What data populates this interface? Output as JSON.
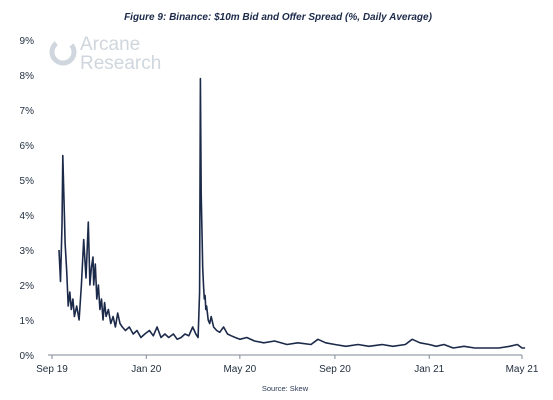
{
  "chart_data": {
    "type": "line",
    "title": "Figure 9: Binance: $10m Bid and Offer Spread (%, Daily Average)",
    "source": "Source: Skew",
    "watermark": [
      "Arcane",
      "Research"
    ],
    "y_ticks": [
      "0%",
      "1%",
      "2%",
      "3%",
      "4%",
      "5%",
      "6%",
      "7%",
      "8%",
      "9%"
    ],
    "x_ticks": [
      "Sep 19",
      "Jan 20",
      "May 20",
      "Sep 20",
      "Jan 21",
      "May 21"
    ],
    "ylim": [
      0,
      9
    ],
    "grid": false,
    "colors": {
      "line": "#1c2a4a",
      "axis": "#7f8a96",
      "watermark": "#cfd6dd"
    },
    "series": [
      {
        "x": [
          "2019-09-10",
          "2019-09-12",
          "2019-09-14",
          "2019-09-15",
          "2019-09-17",
          "2019-09-18",
          "2019-09-20",
          "2019-09-22",
          "2019-09-24",
          "2019-09-26",
          "2019-09-28",
          "2019-09-30",
          "2019-10-03",
          "2019-10-06",
          "2019-10-09",
          "2019-10-12",
          "2019-10-15",
          "2019-10-18",
          "2019-10-20",
          "2019-10-22",
          "2019-10-24",
          "2019-10-25",
          "2019-10-27",
          "2019-10-29",
          "2019-10-31",
          "2019-11-02",
          "2019-11-04",
          "2019-11-06",
          "2019-11-08",
          "2019-11-10",
          "2019-11-13",
          "2019-11-16",
          "2019-11-19",
          "2019-11-22",
          "2019-11-25",
          "2019-11-28",
          "2019-12-01",
          "2019-12-05",
          "2019-12-10",
          "2019-12-15",
          "2019-12-20",
          "2019-12-25",
          "2019-12-30",
          "2020-01-05",
          "2020-01-10",
          "2020-01-15",
          "2020-01-20",
          "2020-01-25",
          "2020-01-30",
          "2020-02-05",
          "2020-02-10",
          "2020-02-15",
          "2020-02-20",
          "2020-02-25",
          "2020-03-01",
          "2020-03-05",
          "2020-03-08",
          "2020-03-10",
          "2020-03-11",
          "2020-03-12",
          "2020-03-13",
          "2020-03-14",
          "2020-03-15",
          "2020-03-16",
          "2020-03-17",
          "2020-03-18",
          "2020-03-19",
          "2020-03-21",
          "2020-03-23",
          "2020-03-25",
          "2020-03-28",
          "2020-04-01",
          "2020-04-05",
          "2020-04-10",
          "2020-04-15",
          "2020-04-20",
          "2020-04-25",
          "2020-05-01",
          "2020-05-10",
          "2020-05-20",
          "2020-06-01",
          "2020-06-15",
          "2020-07-01",
          "2020-07-15",
          "2020-08-01",
          "2020-08-10",
          "2020-08-20",
          "2020-09-01",
          "2020-09-15",
          "2020-10-01",
          "2020-10-15",
          "2020-11-01",
          "2020-11-15",
          "2020-12-01",
          "2020-12-10",
          "2020-12-20",
          "2021-01-01",
          "2021-01-10",
          "2021-01-20",
          "2021-02-01",
          "2021-02-15",
          "2021-03-01",
          "2021-03-15",
          "2021-04-01",
          "2021-04-15",
          "2021-04-25",
          "2021-05-01",
          "2021-05-05"
        ],
        "y": [
          3.0,
          2.1,
          3.7,
          5.7,
          4.0,
          3.2,
          2.4,
          1.4,
          1.8,
          1.3,
          1.6,
          1.1,
          1.4,
          1.0,
          2.0,
          3.3,
          2.2,
          3.8,
          2.0,
          2.5,
          2.8,
          2.0,
          2.6,
          1.6,
          2.0,
          1.3,
          1.6,
          1.0,
          1.5,
          1.1,
          1.3,
          0.9,
          1.1,
          0.8,
          1.2,
          0.9,
          0.8,
          0.7,
          0.8,
          0.6,
          0.7,
          0.5,
          0.6,
          0.7,
          0.55,
          0.8,
          0.5,
          0.6,
          0.5,
          0.6,
          0.45,
          0.5,
          0.6,
          0.55,
          0.8,
          0.6,
          0.5,
          1.8,
          7.9,
          4.6,
          3.5,
          2.5,
          2.0,
          1.6,
          1.7,
          1.3,
          1.4,
          1.0,
          0.9,
          1.1,
          0.8,
          0.7,
          0.65,
          0.8,
          0.6,
          0.55,
          0.5,
          0.45,
          0.5,
          0.4,
          0.35,
          0.4,
          0.3,
          0.35,
          0.3,
          0.45,
          0.35,
          0.3,
          0.25,
          0.3,
          0.25,
          0.3,
          0.25,
          0.3,
          0.45,
          0.35,
          0.3,
          0.25,
          0.3,
          0.2,
          0.25,
          0.2,
          0.2,
          0.2,
          0.25,
          0.3,
          0.2,
          0.2
        ]
      }
    ]
  }
}
